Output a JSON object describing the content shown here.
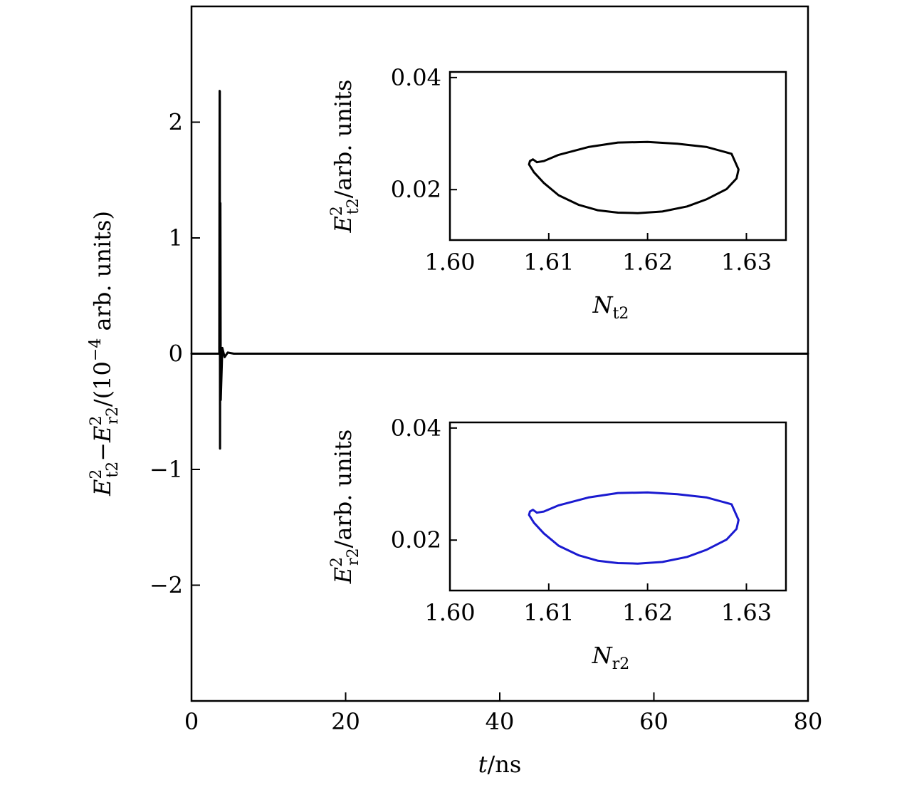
{
  "chart_data": [
    {
      "id": "main",
      "type": "line",
      "xlim": [
        0,
        80
      ],
      "ylim": [
        -3,
        3
      ],
      "xticks": [
        0,
        20,
        40,
        60,
        80
      ],
      "yticks": [
        -2,
        -1,
        0,
        1,
        2
      ],
      "xtick_labels": [
        "0",
        "20",
        "40",
        "60",
        "80"
      ],
      "ytick_labels": [
        "−2",
        "−1",
        "0",
        "1",
        "2"
      ],
      "xlabel": {
        "var": "t",
        "rest": "/ns"
      },
      "ylabel": {
        "e1": "E",
        "e1_sub": "t2",
        "e1_sup": "2",
        "minus": "−",
        "e2": "E",
        "e2_sub": "r2",
        "e2_sup": "2",
        "mid": "/(10",
        "exp": "−4",
        "tail": " arb. units)"
      },
      "series": [
        {
          "color": "#000000",
          "spike": {
            "t": 3.7,
            "min": -0.82,
            "max": 2.27
          },
          "x": [
            0,
            3.6,
            3.65,
            3.7,
            3.75,
            3.8,
            4.0,
            4.3,
            4.7,
            5.5,
            80
          ],
          "y": [
            0,
            0,
            2.27,
            -0.82,
            1.3,
            -0.4,
            0.05,
            -0.03,
            0.01,
            0,
            0
          ]
        }
      ]
    },
    {
      "id": "inset_top",
      "type": "line",
      "xlim": [
        1.6,
        1.634
      ],
      "ylim": [
        0.011,
        0.041
      ],
      "xticks": [
        1.6,
        1.61,
        1.62,
        1.63
      ],
      "yticks": [
        0.02,
        0.04
      ],
      "xtick_labels": [
        "1.60",
        "1.61",
        "1.62",
        "1.63"
      ],
      "ytick_labels": [
        "0.02",
        "0.04"
      ],
      "xlabel": {
        "var": "N",
        "sub": "t2"
      },
      "ylabel": {
        "var": "E",
        "sub": "t2",
        "sup": "2",
        "rest": "/arb. units"
      },
      "series": [
        {
          "color": "#000000",
          "x": [
            1.6088,
            1.6095,
            1.611,
            1.614,
            1.617,
            1.62,
            1.623,
            1.626,
            1.6285,
            1.6292,
            1.629,
            1.628,
            1.626,
            1.624,
            1.6215,
            1.619,
            1.617,
            1.615,
            1.613,
            1.611,
            1.6095,
            1.6085,
            1.608,
            1.6081,
            1.6084,
            1.6088
          ],
          "y": [
            0.0249,
            0.0251,
            0.0262,
            0.0276,
            0.0284,
            0.0285,
            0.0282,
            0.0276,
            0.0264,
            0.0236,
            0.022,
            0.0201,
            0.0183,
            0.017,
            0.0161,
            0.0158,
            0.0159,
            0.0163,
            0.0173,
            0.019,
            0.0212,
            0.0231,
            0.0245,
            0.0251,
            0.0254,
            0.0249
          ]
        }
      ]
    },
    {
      "id": "inset_bottom",
      "type": "line",
      "xlim": [
        1.6,
        1.634
      ],
      "ylim": [
        0.011,
        0.041
      ],
      "xticks": [
        1.6,
        1.61,
        1.62,
        1.63
      ],
      "yticks": [
        0.02,
        0.04
      ],
      "xtick_labels": [
        "1.60",
        "1.61",
        "1.62",
        "1.63"
      ],
      "ytick_labels": [
        "0.02",
        "0.04"
      ],
      "xlabel": {
        "var": "N",
        "sub": "r2"
      },
      "ylabel": {
        "var": "E",
        "sub": "r2",
        "sup": "2",
        "rest": "/arb. units"
      },
      "series": [
        {
          "color": "#1a1ad0",
          "x": [
            1.6088,
            1.6095,
            1.611,
            1.614,
            1.617,
            1.62,
            1.623,
            1.626,
            1.6285,
            1.6292,
            1.629,
            1.628,
            1.626,
            1.624,
            1.6215,
            1.619,
            1.617,
            1.615,
            1.613,
            1.611,
            1.6095,
            1.6085,
            1.608,
            1.6081,
            1.6084,
            1.6088
          ],
          "y": [
            0.0249,
            0.0251,
            0.0262,
            0.0276,
            0.0284,
            0.0285,
            0.0282,
            0.0276,
            0.0264,
            0.0236,
            0.022,
            0.0201,
            0.0183,
            0.017,
            0.0161,
            0.0158,
            0.0159,
            0.0163,
            0.0173,
            0.019,
            0.0212,
            0.0231,
            0.0245,
            0.0251,
            0.0254,
            0.0249
          ]
        }
      ]
    }
  ]
}
